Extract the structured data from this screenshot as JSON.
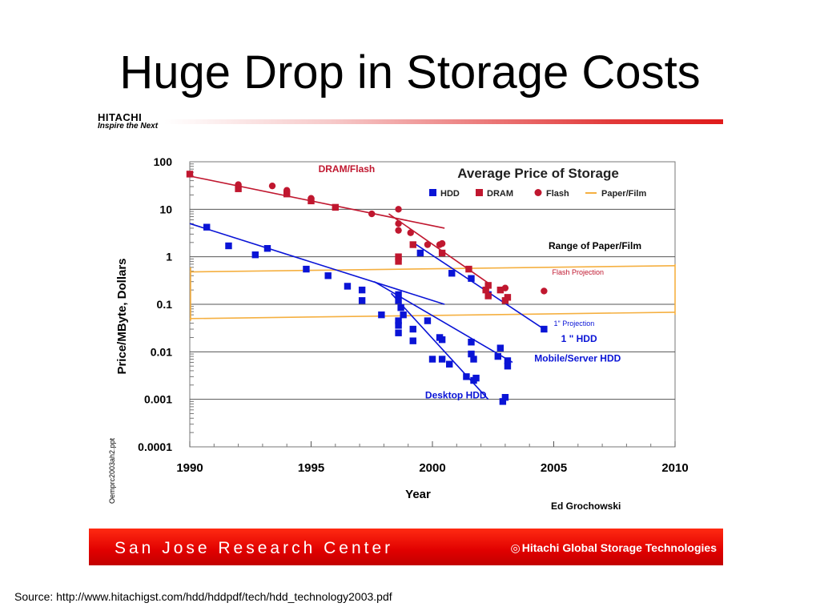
{
  "slide": {
    "title": "Huge Drop in Storage Costs",
    "logo_brand": "HITACHI",
    "logo_tagline": "Inspire the Next",
    "footer_left": "San Jose Research Center",
    "footer_right": "Hitachi Global Storage Technologies",
    "source": "Source: http://www.hitachigst.com/hdd/hddpdf/tech/hdd_technology2003.pdf"
  },
  "chart_data": {
    "type": "scatter",
    "title": "Average Price of Storage",
    "xlabel": "Year",
    "ylabel": "Price/MByte, Dollars",
    "xlim": [
      1990,
      2010
    ],
    "ylim": [
      0.0001,
      100
    ],
    "yscale": "log",
    "grid": true,
    "legend_position": "top-right",
    "x_ticks": [
      "1990",
      "1995",
      "2000",
      "2005",
      "2010"
    ],
    "y_ticks": [
      "100",
      "10",
      "1",
      "0.1",
      "0.01",
      "0.001",
      "0.0001"
    ],
    "side_labels": [
      "Oemprc2003ah2.ppt"
    ],
    "credit": "Ed Grochowski",
    "colors": {
      "hdd": "#0a14d6",
      "dram": "#c0172f",
      "flash": "#c0172f",
      "paper": "#f5b041",
      "grid": "#555555"
    },
    "legend": [
      {
        "label": "HDD",
        "marker": "square",
        "color": "#0a14d6"
      },
      {
        "label": "DRAM",
        "marker": "square",
        "color": "#c0172f"
      },
      {
        "label": "Flash",
        "marker": "circle",
        "color": "#c0172f"
      },
      {
        "label": "Paper/Film",
        "marker": "line",
        "color": "#f5b041"
      }
    ],
    "series": [
      {
        "name": "HDD",
        "marker": "square",
        "color": "#0a14d6",
        "points": [
          [
            1990.7,
            4.2
          ],
          [
            1991.6,
            1.7
          ],
          [
            1992.7,
            1.1
          ],
          [
            1993.2,
            1.5
          ],
          [
            1994.8,
            0.55
          ],
          [
            1995.7,
            0.4
          ],
          [
            1996.5,
            0.24
          ],
          [
            1997.1,
            0.2
          ],
          [
            1997.1,
            0.12
          ],
          [
            1997.9,
            0.06
          ],
          [
            1998.6,
            0.16
          ],
          [
            1998.6,
            0.12
          ],
          [
            1998.7,
            0.085
          ],
          [
            1998.8,
            0.06
          ],
          [
            1998.6,
            0.045
          ],
          [
            1998.6,
            0.036
          ],
          [
            1998.6,
            0.025
          ],
          [
            1999.2,
            0.03
          ],
          [
            1999.2,
            0.017
          ],
          [
            1999.5,
            1.2
          ],
          [
            1999.8,
            0.045
          ],
          [
            2000.0,
            0.007
          ],
          [
            2000.3,
            0.02
          ],
          [
            2000.4,
            0.018
          ],
          [
            2000.4,
            0.007
          ],
          [
            2000.7,
            0.0055
          ],
          [
            2000.8,
            0.45
          ],
          [
            2001.4,
            0.003
          ],
          [
            2001.6,
            0.016
          ],
          [
            2001.6,
            0.009
          ],
          [
            2001.7,
            0.007
          ],
          [
            2001.7,
            0.0025
          ],
          [
            2001.8,
            0.0028
          ],
          [
            2001.6,
            0.35
          ],
          [
            2002.3,
            0.16
          ],
          [
            2002.7,
            0.008
          ],
          [
            2002.8,
            0.012
          ],
          [
            2002.9,
            0.0009
          ],
          [
            2003.0,
            0.0011
          ],
          [
            2003.1,
            0.0065
          ],
          [
            2003.1,
            0.005
          ],
          [
            2004.6,
            0.03
          ]
        ]
      },
      {
        "name": "DRAM",
        "marker": "square",
        "color": "#c0172f",
        "points": [
          [
            1990.0,
            55
          ],
          [
            1992.0,
            27
          ],
          [
            1994.0,
            21
          ],
          [
            1995.0,
            15
          ],
          [
            1996.0,
            11
          ],
          [
            1998.6,
            1.0
          ],
          [
            1998.6,
            0.8
          ],
          [
            1999.2,
            1.8
          ],
          [
            2000.4,
            1.2
          ],
          [
            2001.5,
            0.55
          ],
          [
            2002.2,
            0.2
          ],
          [
            2002.3,
            0.25
          ],
          [
            2002.3,
            0.15
          ],
          [
            2002.8,
            0.2
          ],
          [
            2003.0,
            0.12
          ],
          [
            2003.1,
            0.14
          ]
        ]
      },
      {
        "name": "Flash",
        "marker": "circle",
        "color": "#c0172f",
        "points": [
          [
            1992.0,
            33
          ],
          [
            1993.4,
            31
          ],
          [
            1994.0,
            25
          ],
          [
            1995.0,
            17
          ],
          [
            1997.5,
            8
          ],
          [
            1998.6,
            10
          ],
          [
            1998.6,
            5
          ],
          [
            1998.6,
            3.6
          ],
          [
            1999.1,
            3.2
          ],
          [
            1999.8,
            1.8
          ],
          [
            2000.3,
            1.8
          ],
          [
            2000.4,
            1.9
          ],
          [
            2003.0,
            0.22
          ],
          [
            2004.6,
            0.19
          ]
        ]
      }
    ],
    "trend_lines": [
      {
        "color": "#c0172f",
        "points": [
          [
            1990.0,
            50
          ],
          [
            2000.5,
            4
          ]
        ]
      },
      {
        "color": "#c0172f",
        "points": [
          [
            1998.2,
            8
          ],
          [
            2002.3,
            0.28
          ]
        ]
      },
      {
        "color": "#0a14d6",
        "points": [
          [
            1990.0,
            5
          ],
          [
            2000.5,
            0.1
          ]
        ]
      },
      {
        "color": "#0a14d6",
        "points": [
          [
            1999.2,
            2.0
          ],
          [
            2004.6,
            0.03
          ]
        ]
      },
      {
        "color": "#0a14d6",
        "points": [
          [
            1997.6,
            0.3
          ],
          [
            2003.3,
            0.006
          ]
        ]
      },
      {
        "color": "#0a14d6",
        "points": [
          [
            1998.3,
            0.17
          ],
          [
            2002.3,
            0.001
          ]
        ]
      }
    ],
    "paper_band": [
      {
        "points": [
          [
            1990,
            0.48
          ],
          [
            2010,
            0.65
          ]
        ]
      },
      {
        "points": [
          [
            1990,
            0.05
          ],
          [
            2010,
            0.068
          ]
        ]
      }
    ],
    "annotations": [
      {
        "text": "DRAM/Flash",
        "x": 1995.3,
        "y": 60,
        "color": "#c0172f",
        "size": "normal"
      },
      {
        "text": "Range of Paper/Film",
        "x": 2006.7,
        "y": 1.45,
        "color": "#000000",
        "size": "normal"
      },
      {
        "text": "Flash Projection",
        "x": 2006.0,
        "y": 0.42,
        "color": "#c0172f",
        "size": "small"
      },
      {
        "text": "1\" Projection",
        "x": 2005.0,
        "y": 0.035,
        "color": "#0a14d6",
        "size": "small"
      },
      {
        "text": "1 \" HDD",
        "x": 2005.3,
        "y": 0.016,
        "color": "#0a14d6",
        "size": "normal"
      },
      {
        "text": "Mobile/Server HDD",
        "x": 2004.2,
        "y": 0.0062,
        "color": "#0a14d6",
        "size": "normal"
      },
      {
        "text": "Desktop HDD",
        "x": 1999.7,
        "y": 0.00105,
        "color": "#0a14d6",
        "size": "normal"
      }
    ]
  }
}
